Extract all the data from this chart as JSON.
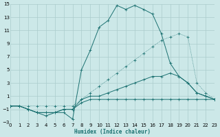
{
  "xlabel": "Humidex (Indice chaleur)",
  "bg_color": "#cce8e8",
  "grid_color": "#aacccc",
  "line_color": "#1a7070",
  "xlim": [
    0,
    23
  ],
  "ylim": [
    -3,
    15
  ],
  "xticks": [
    0,
    1,
    2,
    3,
    4,
    5,
    6,
    7,
    8,
    9,
    10,
    11,
    12,
    13,
    14,
    15,
    16,
    17,
    18,
    19,
    20,
    21,
    22,
    23
  ],
  "yticks": [
    -3,
    -1,
    1,
    3,
    5,
    7,
    9,
    11,
    13,
    15
  ],
  "line_main_x": [
    0,
    1,
    2,
    3,
    4,
    5,
    6,
    7,
    8,
    9,
    10,
    11,
    12,
    13,
    14,
    15,
    16,
    17,
    18,
    19,
    20,
    21,
    22,
    23
  ],
  "line_main_y": [
    -0.5,
    -0.5,
    -1.0,
    -1.5,
    -2.0,
    -1.5,
    -1.5,
    -2.5,
    5.0,
    8.0,
    11.5,
    12.5,
    14.8,
    14.2,
    14.8,
    14.2,
    13.5,
    10.5,
    6.0,
    4.0,
    3.0,
    1.5,
    1.0,
    0.5
  ],
  "line_up_x": [
    0,
    1,
    2,
    3,
    4,
    5,
    6,
    7,
    8,
    9,
    10,
    11,
    12,
    13,
    14,
    15,
    16,
    17,
    18,
    19,
    20,
    21,
    22,
    23
  ],
  "line_up_y": [
    -0.5,
    -0.5,
    -0.5,
    -0.5,
    -0.5,
    -0.5,
    -0.5,
    -0.5,
    0.5,
    1.5,
    2.5,
    3.5,
    4.5,
    5.5,
    6.5,
    7.5,
    8.5,
    9.5,
    10.0,
    10.5,
    10.0,
    3.0,
    1.5,
    0.5
  ],
  "line_mid_x": [
    0,
    1,
    2,
    3,
    4,
    5,
    6,
    7,
    8,
    9,
    10,
    11,
    12,
    13,
    14,
    15,
    16,
    17,
    18,
    19,
    20,
    21,
    22,
    23
  ],
  "line_mid_y": [
    -0.5,
    -0.5,
    -1.0,
    -1.5,
    -1.5,
    -1.5,
    -1.0,
    -1.0,
    0.5,
    1.0,
    1.0,
    1.5,
    2.0,
    2.5,
    3.0,
    3.5,
    4.0,
    4.0,
    4.5,
    4.0,
    3.0,
    1.5,
    1.0,
    0.5
  ],
  "line_low_x": [
    0,
    1,
    2,
    3,
    4,
    5,
    6,
    7,
    8,
    9,
    10,
    11,
    12,
    13,
    14,
    15,
    16,
    17,
    18,
    19,
    20,
    21,
    22,
    23
  ],
  "line_low_y": [
    -0.5,
    -0.5,
    -1.0,
    -1.5,
    -1.5,
    -1.5,
    -1.0,
    -1.0,
    0.0,
    0.5,
    0.5,
    0.5,
    0.5,
    0.5,
    0.5,
    0.5,
    0.5,
    0.5,
    0.5,
    0.5,
    0.5,
    0.5,
    0.5,
    0.5
  ]
}
